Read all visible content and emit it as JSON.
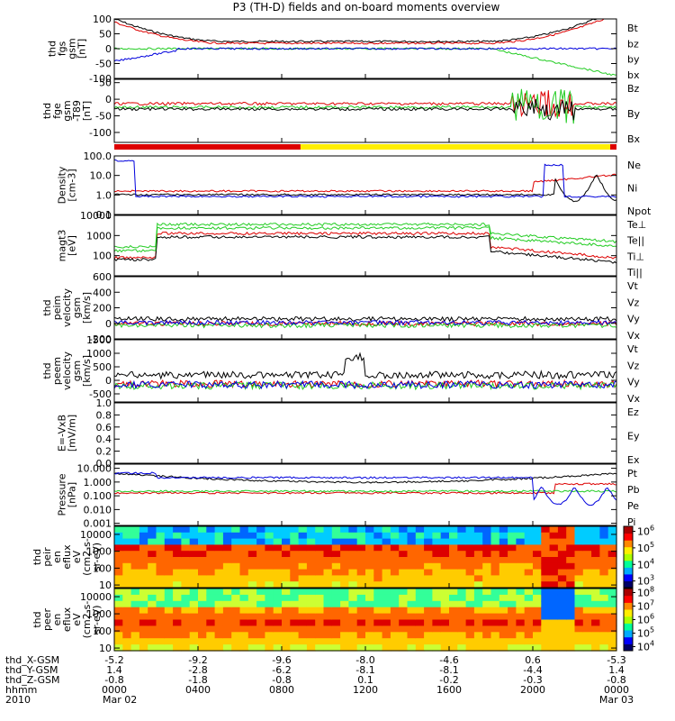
{
  "title": "P3 (TH-D) fields and on-board moments overview",
  "colors": {
    "black": "#000000",
    "red": "#dd0000",
    "green": "#22cc22",
    "blue": "#0000dd",
    "yellow": "#ffee00"
  },
  "chart_data": {
    "type": "line",
    "x_axis": {
      "rows": [
        {
          "label": "thd_X-GSM",
          "values": [
            "-5.2",
            "-9.2",
            "-9.6",
            "-8.0",
            "-4.6",
            "0.6",
            "-5.3"
          ]
        },
        {
          "label": "thd_Y-GSM",
          "values": [
            "1.4",
            "-2.8",
            "-6.2",
            "-8.1",
            "-8.1",
            "-4.4",
            "1.4"
          ]
        },
        {
          "label": "thd_Z-GSM",
          "values": [
            "-0.8",
            "-1.8",
            "-0.8",
            "0.1",
            "-0.2",
            "-0.3",
            "-0.8"
          ]
        },
        {
          "label": "hhmm",
          "values": [
            "0000",
            "0400",
            "0800",
            "1200",
            "1600",
            "2000",
            "0000"
          ]
        },
        {
          "label": "2010",
          "values": [
            "Mar 02",
            "",
            "",
            "",
            "",
            "",
            "Mar 03"
          ]
        }
      ],
      "tick_hours": [
        0,
        4,
        8,
        12,
        16,
        20,
        24
      ]
    },
    "mode_bar": {
      "segments": [
        {
          "from_hour": 0,
          "to_hour": 8.9,
          "color": "red"
        },
        {
          "from_hour": 8.9,
          "to_hour": 23.7,
          "color": "yellow"
        },
        {
          "from_hour": 23.7,
          "to_hour": 24,
          "color": "red"
        }
      ]
    },
    "panels": [
      {
        "ylabel": [
          "thd",
          "fgs",
          "gsm",
          "[nT]"
        ],
        "scale": "linear",
        "ylim": [
          -100,
          100
        ],
        "ticks": [
          "-100",
          "-50",
          "0",
          "50",
          "100"
        ],
        "series": [
          {
            "name": "Bt",
            "color": "black"
          },
          {
            "name": "bz",
            "color": "red"
          },
          {
            "name": "by",
            "color": "green"
          },
          {
            "name": "bx",
            "color": "blue"
          }
        ]
      },
      {
        "ylabel": [
          "thd",
          "fge",
          "gsm",
          "-T89",
          "[nT]"
        ],
        "scale": "linear",
        "ylim": [
          -130,
          60
        ],
        "ticks": [
          "-100",
          "-50",
          "0",
          "50"
        ],
        "series": [
          {
            "name": "Bz",
            "color": "red"
          },
          {
            "name": "By",
            "color": "green"
          },
          {
            "name": "Bx",
            "color": "black"
          }
        ]
      },
      {
        "ylabel": [
          "Density",
          "[cm-3]"
        ],
        "scale": "log",
        "ylim": [
          0.1,
          100
        ],
        "ticks": [
          "0.1",
          "1.0",
          "10.0",
          "100.0"
        ],
        "series": [
          {
            "name": "Ne",
            "color": "red"
          },
          {
            "name": "Ni",
            "color": "black"
          },
          {
            "name": "Npot",
            "color": "blue"
          }
        ]
      },
      {
        "ylabel": [
          "magt3",
          "[eV]"
        ],
        "scale": "log",
        "ylim": [
          10,
          10000
        ],
        "ticks": [
          "100",
          "1000",
          "10000"
        ],
        "series": [
          {
            "name": "Te⊥",
            "color": "red"
          },
          {
            "name": "Te||",
            "color": "black"
          },
          {
            "name": "Ti⊥",
            "color": "green"
          },
          {
            "name": "Ti||",
            "color": "green"
          }
        ]
      },
      {
        "ylabel": [
          "thd",
          "peim",
          "velocity",
          "gsm",
          "[km/s]"
        ],
        "scale": "linear",
        "ylim": [
          -200,
          600
        ],
        "ticks": [
          "-200",
          "0",
          "200",
          "400",
          "600"
        ],
        "series": [
          {
            "name": "Vt",
            "color": "black"
          },
          {
            "name": "Vz",
            "color": "red"
          },
          {
            "name": "Vy",
            "color": "green"
          },
          {
            "name": "Vx",
            "color": "blue"
          }
        ]
      },
      {
        "ylabel": [
          "thd",
          "peem",
          "velocity",
          "gsm",
          "[km/s]"
        ],
        "scale": "linear",
        "ylim": [
          -800,
          1500
        ],
        "ticks": [
          "-500",
          "0",
          "500",
          "1000",
          "1500"
        ],
        "series": [
          {
            "name": "Vt",
            "color": "black"
          },
          {
            "name": "Vz",
            "color": "red"
          },
          {
            "name": "Vy",
            "color": "green"
          },
          {
            "name": "Vx",
            "color": "blue"
          }
        ]
      },
      {
        "ylabel": [
          "E=-VxB",
          "[mV/m]"
        ],
        "scale": "linear",
        "ylim": [
          0,
          1
        ],
        "ticks": [
          "0.0",
          "0.2",
          "0.4",
          "0.6",
          "0.8",
          "1.0"
        ],
        "series": [
          {
            "name": "Ez",
            "color": "red"
          },
          {
            "name": "Ey",
            "color": "green"
          },
          {
            "name": "Ex",
            "color": "blue"
          }
        ]
      },
      {
        "ylabel": [
          "Pressure",
          "[nPa]"
        ],
        "scale": "log",
        "ylim": [
          0.0007,
          20
        ],
        "ticks": [
          "0.001",
          "0.010",
          "0.100",
          "1.000",
          "10.000"
        ],
        "series": [
          {
            "name": "Pt",
            "color": "black"
          },
          {
            "name": "Pb",
            "color": "red"
          },
          {
            "name": "Pe",
            "color": "green"
          },
          {
            "name": "Pi",
            "color": "blue"
          }
        ]
      },
      {
        "ylabel": [
          "thd",
          "peir",
          "en",
          "eflux",
          "eV",
          "(cm2-s-",
          "sr-eV)"
        ],
        "scale": "log",
        "ylim": [
          7,
          30000
        ],
        "ticks": [
          "10",
          "100",
          "1000",
          "10000"
        ],
        "colorbar": {
          "min_exp": 2.6,
          "max_exp": 6.3,
          "labels": [
            {
              "base": "10",
              "exp": "3"
            },
            {
              "base": "10",
              "exp": "4"
            },
            {
              "base": "10",
              "exp": "5"
            },
            {
              "base": "10",
              "exp": "6"
            }
          ]
        }
      },
      {
        "ylabel": [
          "thd",
          "peer",
          "en",
          "eflux",
          "eV",
          "(cm2-s-",
          "sr-eV)"
        ],
        "scale": "log",
        "ylim": [
          7,
          30000
        ],
        "ticks": [
          "10",
          "100",
          "1000",
          "10000"
        ],
        "colorbar": {
          "min_exp": 3.7,
          "max_exp": 8.3,
          "labels": [
            {
              "base": "10",
              "exp": "4"
            },
            {
              "base": "10",
              "exp": "5"
            },
            {
              "base": "10",
              "exp": "6"
            },
            {
              "base": "10",
              "exp": "7"
            },
            {
              "base": "10",
              "exp": "8"
            }
          ]
        }
      }
    ]
  }
}
